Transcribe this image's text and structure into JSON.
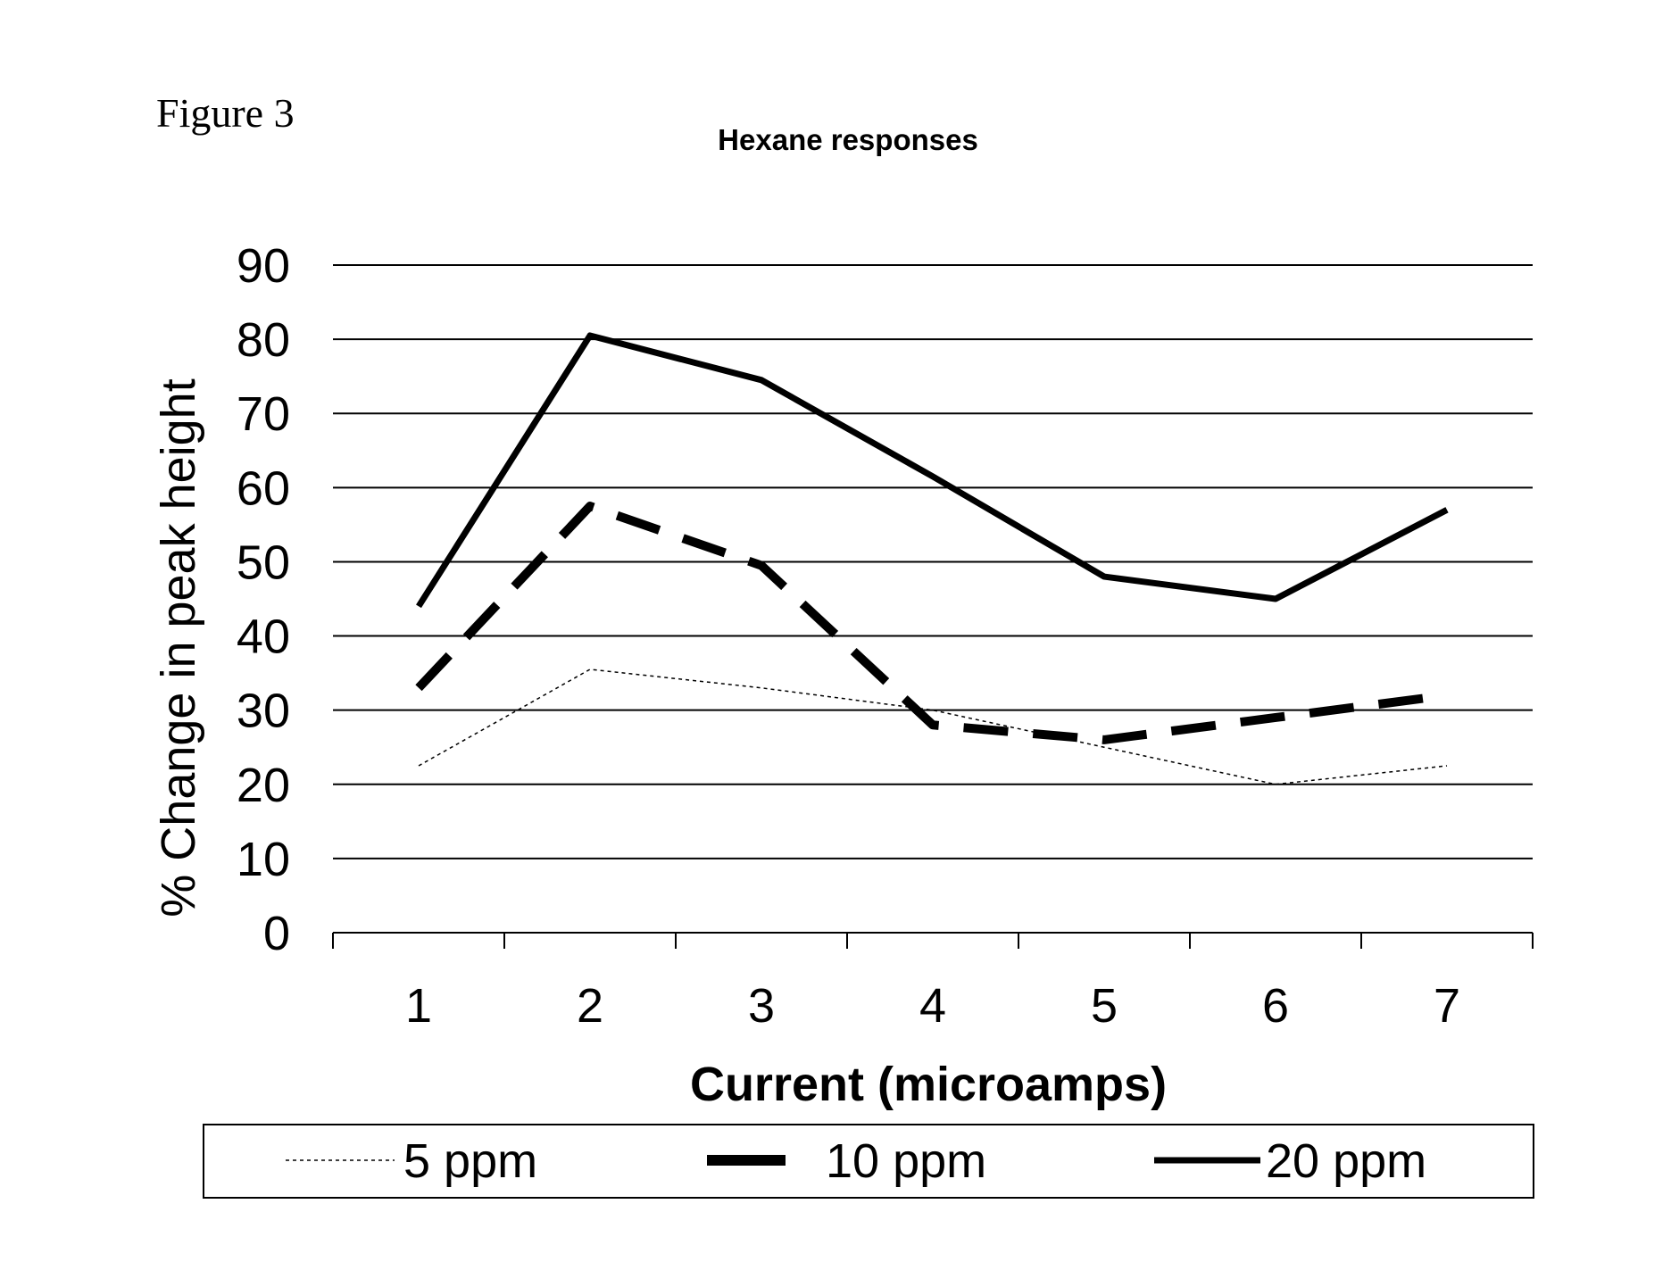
{
  "figure_label": "Figure 3",
  "chart_data": {
    "type": "line",
    "title": "Hexane responses",
    "xlabel": "Current (microamps)",
    "ylabel": "% Change in peak height",
    "categories": [
      "1",
      "2",
      "3",
      "4",
      "5",
      "6",
      "7"
    ],
    "ylim": [
      0,
      90
    ],
    "yticks": [
      "0",
      "10",
      "20",
      "30",
      "40",
      "50",
      "60",
      "70",
      "80",
      "90"
    ],
    "grid": true,
    "legend_position": "bottom",
    "series": [
      {
        "name": "5 ppm",
        "values": [
          22.5,
          35.5,
          33,
          30,
          25,
          20,
          22.5
        ],
        "color": "#000000",
        "style": "dotted-thin"
      },
      {
        "name": "10 ppm",
        "values": [
          33,
          57.5,
          49.5,
          28,
          26,
          29,
          32
        ],
        "color": "#000000",
        "style": "dashed-thick"
      },
      {
        "name": "20 ppm",
        "values": [
          44,
          80.5,
          74.5,
          61.5,
          48,
          45,
          57
        ],
        "color": "#000000",
        "style": "solid-thick"
      }
    ]
  }
}
